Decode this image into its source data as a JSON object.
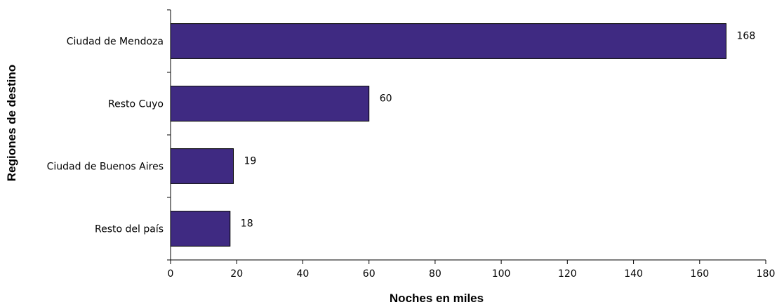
{
  "chart_data": {
    "type": "bar",
    "orientation": "horizontal",
    "categories": [
      "Ciudad de Mendoza",
      "Resto Cuyo",
      "Ciudad de Buenos Aires",
      "Resto del país"
    ],
    "values": [
      168,
      60,
      19,
      18
    ],
    "xlabel": "Noches en miles",
    "ylabel": "Regiones de destino",
    "xlim": [
      0,
      180
    ],
    "xticks": [
      0,
      20,
      40,
      60,
      80,
      100,
      120,
      140,
      160,
      180
    ],
    "grid": false,
    "legend": "none",
    "bar_color": "#3F2A82",
    "bar_edge_color": "#000000"
  }
}
